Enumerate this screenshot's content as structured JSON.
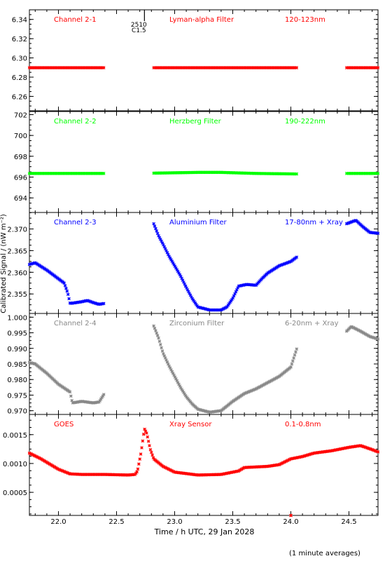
{
  "figure": {
    "xlabel": "Time / h UTC, 29 Jan 2028",
    "ylabel": "Calibrated Signal / (nW m⁻²)",
    "footnote": "(1 minute averages)",
    "flare_marker": {
      "label_top": "2510",
      "label_bottom": "C1.5",
      "x": 22.74
    },
    "x_ticks": [
      22.0,
      22.5,
      23.0,
      23.5,
      24.0,
      24.5
    ],
    "x_tick_labels": [
      "22.0",
      "22.5",
      "23.0",
      "23.5",
      "24.0",
      "24.5"
    ],
    "xlim": [
      21.75,
      24.75
    ]
  },
  "chart_data": [
    {
      "type": "scatter",
      "channel": "Channel 2-1",
      "filter": "Lyman-alpha Filter",
      "band": "120-123nm",
      "color": "#ff0000",
      "ylim": [
        6.245,
        6.35
      ],
      "y_ticks": [
        6.26,
        6.28,
        6.3,
        6.32,
        6.34
      ],
      "y_tick_labels": [
        "6.26",
        "6.28",
        "6.30",
        "6.32",
        "6.34"
      ],
      "segments": [
        {
          "x_start": 21.75,
          "x_end": 22.39,
          "points": [
            [
              21.75,
              6.2898
            ],
            [
              22.39,
              6.2898
            ]
          ]
        },
        {
          "x_start": 22.82,
          "x_end": 24.05,
          "points": [
            [
              22.82,
              6.2898
            ],
            [
              24.05,
              6.2898
            ]
          ]
        },
        {
          "x_start": 24.48,
          "x_end": 24.75,
          "points": [
            [
              24.48,
              6.2898
            ],
            [
              24.75,
              6.2898
            ]
          ]
        }
      ]
    },
    {
      "type": "scatter",
      "channel": "Channel 2-2",
      "filter": "Herzberg Filter",
      "band": "190-222nm",
      "color": "#00ff00",
      "ylim": [
        692.6,
        702.3
      ],
      "y_ticks": [
        694,
        696,
        698,
        700,
        702
      ],
      "y_tick_labels": [
        "694",
        "696",
        "698",
        "700",
        "702"
      ],
      "segments": [
        {
          "x_start": 21.75,
          "x_end": 22.39,
          "points": [
            [
              21.75,
              696.35
            ],
            [
              22.39,
              696.35
            ]
          ]
        },
        {
          "x_start": 22.82,
          "x_end": 24.05,
          "points": [
            [
              22.82,
              696.38
            ],
            [
              23.2,
              696.45
            ],
            [
              23.4,
              696.45
            ],
            [
              23.7,
              696.35
            ],
            [
              24.05,
              696.3
            ]
          ]
        },
        {
          "x_start": 24.48,
          "x_end": 24.75,
          "points": [
            [
              24.48,
              696.35
            ],
            [
              24.75,
              696.35
            ]
          ]
        }
      ]
    },
    {
      "type": "scatter",
      "channel": "Channel 2-3",
      "filter": "Aluminium Filter",
      "band": "17-80nm + Xray",
      "color": "#0000ff",
      "ylim": [
        2.3505,
        2.3738
      ],
      "y_ticks": [
        2.355,
        2.36,
        2.365,
        2.37
      ],
      "y_tick_labels": [
        "2.355",
        "2.360",
        "2.365",
        "2.370"
      ],
      "segments": [
        {
          "x_start": 21.75,
          "x_end": 22.39,
          "points": [
            [
              21.75,
              2.3618
            ],
            [
              21.8,
              2.3622
            ],
            [
              21.9,
              2.3605
            ],
            [
              22.0,
              2.3585
            ],
            [
              22.05,
              2.3575
            ],
            [
              22.08,
              2.3552
            ],
            [
              22.1,
              2.3528
            ],
            [
              22.2,
              2.3532
            ],
            [
              22.25,
              2.3535
            ],
            [
              22.3,
              2.353
            ],
            [
              22.35,
              2.3526
            ],
            [
              22.39,
              2.3528
            ]
          ]
        },
        {
          "x_start": 22.82,
          "x_end": 24.05,
          "points": [
            [
              22.82,
              2.3712
            ],
            [
              22.86,
              2.3685
            ],
            [
              22.9,
              2.3665
            ],
            [
              22.95,
              2.3638
            ],
            [
              23.0,
              2.3615
            ],
            [
              23.05,
              2.3592
            ],
            [
              23.1,
              2.3565
            ],
            [
              23.15,
              2.354
            ],
            [
              23.2,
              2.352
            ],
            [
              23.3,
              2.3513
            ],
            [
              23.4,
              2.3513
            ],
            [
              23.45,
              2.352
            ],
            [
              23.5,
              2.354
            ],
            [
              23.55,
              2.3568
            ],
            [
              23.62,
              2.3572
            ],
            [
              23.7,
              2.357
            ],
            [
              23.75,
              2.3585
            ],
            [
              23.8,
              2.3598
            ],
            [
              23.9,
              2.3615
            ],
            [
              24.0,
              2.3625
            ],
            [
              24.05,
              2.3635
            ]
          ]
        },
        {
          "x_start": 24.48,
          "x_end": 24.75,
          "points": [
            [
              24.48,
              2.3712
            ],
            [
              24.56,
              2.372
            ],
            [
              24.62,
              2.3705
            ],
            [
              24.68,
              2.3692
            ],
            [
              24.75,
              2.369
            ]
          ]
        }
      ]
    },
    {
      "type": "scatter",
      "channel": "Channel 2-4",
      "filter": "Zirconium Filter",
      "band": "6-20nm + Xray",
      "color": "#888888",
      "ylim": [
        0.9688,
        1.0012
      ],
      "y_ticks": [
        0.97,
        0.975,
        0.98,
        0.985,
        0.99,
        0.995,
        1.0
      ],
      "y_tick_labels": [
        "0.970",
        "0.975",
        "0.980",
        "0.985",
        "0.990",
        "0.995",
        "1.000"
      ],
      "segments": [
        {
          "x_start": 21.75,
          "x_end": 22.39,
          "points": [
            [
              21.75,
              0.9855
            ],
            [
              21.8,
              0.985
            ],
            [
              21.9,
              0.982
            ],
            [
              22.0,
              0.9785
            ],
            [
              22.1,
              0.976
            ],
            [
              22.12,
              0.9725
            ],
            [
              22.2,
              0.973
            ],
            [
              22.3,
              0.9725
            ],
            [
              22.35,
              0.9728
            ],
            [
              22.39,
              0.9752
            ]
          ]
        },
        {
          "x_start": 22.82,
          "x_end": 24.05,
          "points": [
            [
              22.82,
              0.9972
            ],
            [
              22.86,
              0.9935
            ],
            [
              22.9,
              0.9885
            ],
            [
              22.95,
              0.9845
            ],
            [
              23.0,
              0.981
            ],
            [
              23.05,
              0.9775
            ],
            [
              23.1,
              0.9745
            ],
            [
              23.15,
              0.9722
            ],
            [
              23.2,
              0.9705
            ],
            [
              23.3,
              0.9695
            ],
            [
              23.4,
              0.97
            ],
            [
              23.5,
              0.973
            ],
            [
              23.6,
              0.9755
            ],
            [
              23.7,
              0.977
            ],
            [
              23.8,
              0.979
            ],
            [
              23.9,
              0.981
            ],
            [
              24.0,
              0.984
            ],
            [
              24.05,
              0.9898
            ]
          ]
        },
        {
          "x_start": 24.48,
          "x_end": 24.75,
          "points": [
            [
              24.48,
              0.9955
            ],
            [
              24.52,
              0.997
            ],
            [
              24.6,
              0.9955
            ],
            [
              24.68,
              0.9938
            ],
            [
              24.75,
              0.993
            ]
          ]
        }
      ]
    },
    {
      "type": "scatter",
      "channel": "GOES",
      "filter": "Xray Sensor",
      "band": "0.1-0.8nm",
      "color": "#ff0000",
      "ylim": [
        0.0001,
        0.00185
      ],
      "y_ticks": [
        0.0005,
        0.001,
        0.0015
      ],
      "y_tick_labels": [
        "0.0005",
        "0.0010",
        "0.0015"
      ],
      "segments": [
        {
          "x_start": 21.75,
          "x_end": 24.75,
          "points": [
            [
              21.75,
              0.00118
            ],
            [
              21.85,
              0.00108
            ],
            [
              22.0,
              0.0009
            ],
            [
              22.1,
              0.00082
            ],
            [
              22.2,
              0.00081
            ],
            [
              22.4,
              0.00081
            ],
            [
              22.6,
              0.0008
            ],
            [
              22.66,
              0.00081
            ],
            [
              22.68,
              0.00087
            ],
            [
              22.71,
              0.00118
            ],
            [
              22.74,
              0.0016
            ],
            [
              22.76,
              0.00152
            ],
            [
              22.79,
              0.00125
            ],
            [
              22.82,
              0.00108
            ],
            [
              22.9,
              0.00095
            ],
            [
              23.0,
              0.00085
            ],
            [
              23.2,
              0.0008
            ],
            [
              23.4,
              0.00081
            ],
            [
              23.55,
              0.00087
            ],
            [
              23.6,
              0.00093
            ],
            [
              23.8,
              0.00095
            ],
            [
              23.9,
              0.00098
            ],
            [
              24.0,
              0.00108
            ],
            [
              24.1,
              0.00112
            ],
            [
              24.2,
              0.00118
            ],
            [
              24.35,
              0.00122
            ],
            [
              24.5,
              0.00128
            ],
            [
              24.6,
              0.00131
            ],
            [
              24.7,
              0.00124
            ],
            [
              24.75,
              0.0012
            ]
          ]
        },
        {
          "x_start": 24.0,
          "x_end": 24.0,
          "points": [
            [
              24.0,
              0.0001
            ]
          ]
        }
      ]
    }
  ]
}
